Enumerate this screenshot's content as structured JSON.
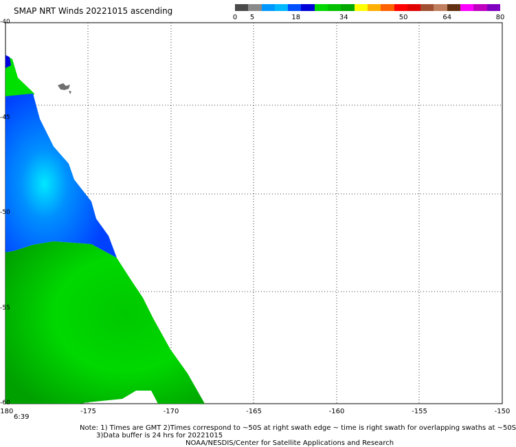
{
  "title": "SMAP NRT Winds 20221015 ascending",
  "colorbar": {
    "labels": [
      {
        "text": "0",
        "frac": 0.0
      },
      {
        "text": "5",
        "frac": 0.065
      },
      {
        "text": "18",
        "frac": 0.23
      },
      {
        "text": "34",
        "frac": 0.41
      },
      {
        "text": "50",
        "frac": 0.635
      },
      {
        "text": "64",
        "frac": 0.8
      },
      {
        "text": "80",
        "frac": 1.0
      }
    ],
    "colors": [
      "#4a4a4a",
      "#8a8a8a",
      "#0098ff",
      "#00b8ff",
      "#0050ff",
      "#0000d8",
      "#00d800",
      "#00c000",
      "#00a800",
      "#ffff00",
      "#ffb000",
      "#ff6000",
      "#ff0000",
      "#e00000",
      "#a05030",
      "#c08060",
      "#603010",
      "#ff00ff",
      "#c000c0",
      "#8000c0"
    ]
  },
  "map": {
    "x_ticks": [
      "-180",
      "-175",
      "-170",
      "-165",
      "-160",
      "-155",
      "-150"
    ],
    "y_ticks": [
      "-40",
      "-45",
      "-50",
      "-55",
      "-60"
    ],
    "lon_range": [
      -180,
      -150
    ],
    "lat_range": [
      -60,
      -40
    ]
  },
  "time_label": "6:39",
  "notes": {
    "line1": "Note: 1) Times are GMT 2)Times correspond to ~50S at right swath edge ~ time is right swath for overlapping swaths at ~50S",
    "line2": "3)Data buffer is 24 hrs for 20221015",
    "line3": "NOAA/NESDIS/Center for Satellite Applications and Research"
  }
}
